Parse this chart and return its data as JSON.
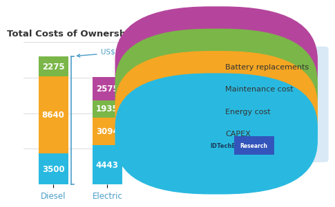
{
  "title": "Total Costs of Ownership (US$ Thousand)",
  "categories": [
    "Diesel",
    "Electric"
  ],
  "segments": {
    "CAPEX": {
      "diesel": 3500,
      "electric": 4443,
      "color": "#29b9e0"
    },
    "Energy cost": {
      "diesel": 8640,
      "electric": 3094,
      "color": "#f5a623"
    },
    "Maintenance cost": {
      "diesel": 2275,
      "electric": 1935,
      "color": "#7ab648"
    },
    "Battery replacements": {
      "diesel": 0,
      "electric": 2575,
      "color": "#b5459c"
    }
  },
  "segment_order": [
    "CAPEX",
    "Energy cost",
    "Maintenance cost",
    "Battery replacements"
  ],
  "annotation_text": "US$2.37 million",
  "annotation_color": "#4a9cc7",
  "legend_bg_color": "#d9eaf6",
  "bar_width": 0.55,
  "background_color": "#ffffff",
  "title_fontsize": 9.5,
  "label_fontsize": 8.5,
  "tick_fontsize": 8.5,
  "legend_fontsize": 8,
  "ylim": [
    0,
    16000
  ],
  "total_diesel": 14415,
  "total_electric": 12047
}
